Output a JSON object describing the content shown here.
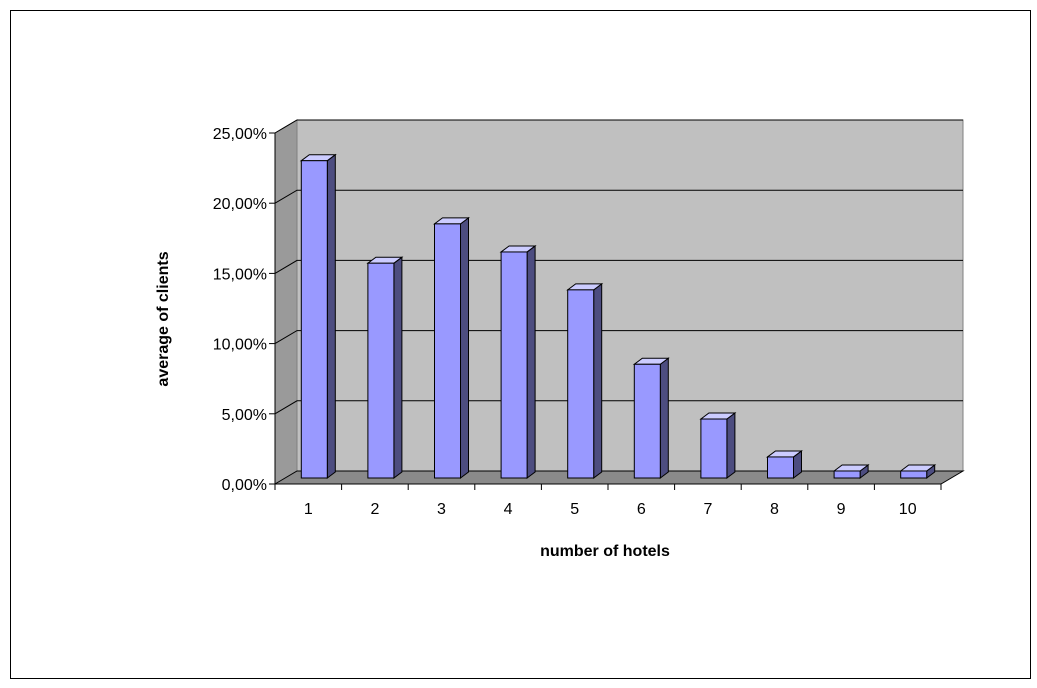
{
  "chart_data": {
    "type": "bar",
    "title": "",
    "xlabel": "number of hotels",
    "ylabel": "average of clients",
    "categories": [
      "1",
      "2",
      "3",
      "4",
      "5",
      "6",
      "7",
      "8",
      "9",
      "10"
    ],
    "values": [
      22.6,
      15.3,
      18.1,
      16.1,
      13.4,
      8.1,
      4.2,
      1.5,
      0.5,
      0.5
    ],
    "ylim": [
      0,
      25
    ],
    "yticks": [
      "0,00%",
      "5,00%",
      "10,00%",
      "15,00%",
      "20,00%",
      "25,00%"
    ],
    "grid": true,
    "legend": "none",
    "colors": {
      "bar_front": "#9999ff",
      "bar_top": "#ccccff",
      "bar_side": "#4d4d80",
      "wall": "#c0c0c0",
      "wall_side": "#9a9a9a",
      "floor": "#8a8a8a"
    }
  }
}
